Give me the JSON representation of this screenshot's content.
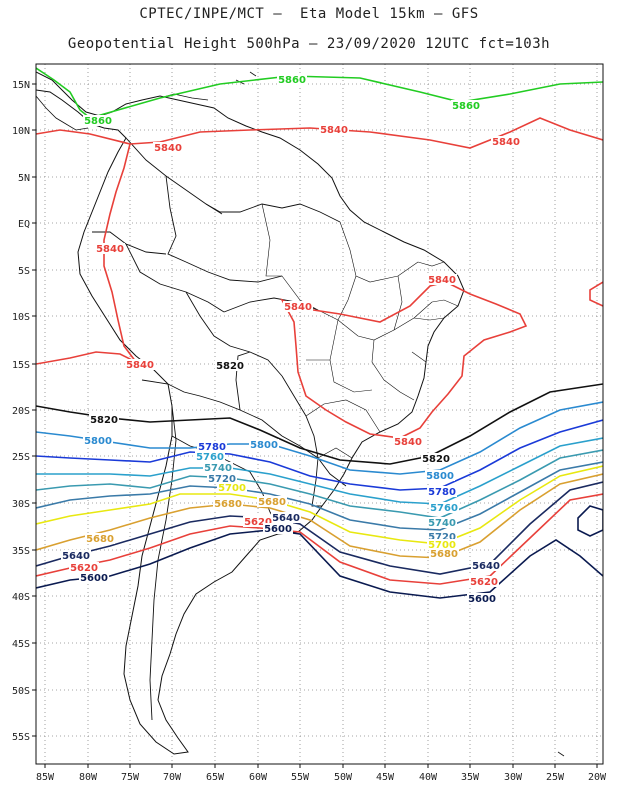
{
  "header": {
    "line1": "CPTEC/INPE/MCT –  Eta Model 15km – GFS",
    "line2": "Geopotential Height 500hPa – 23/09/2020 12UTC fct=103h"
  },
  "axes": {
    "lat_labels": [
      "15N",
      "10N",
      "5N",
      "EQ",
      "5S",
      "10S",
      "15S",
      "20S",
      "25S",
      "30S",
      "35S",
      "40S",
      "45S",
      "50S",
      "55S"
    ],
    "lon_labels": [
      "85W",
      "80W",
      "75W",
      "70W",
      "65W",
      "60W",
      "55W",
      "50W",
      "45W",
      "40W",
      "35W",
      "30W",
      "25W",
      "20W"
    ],
    "grid": "dotted"
  },
  "colors": {
    "5860": "#22cc22",
    "5840": "#e8403a",
    "5820": "#111111",
    "5800": "#2a8ad0",
    "5780": "#1a3ad8",
    "5760": "#2aa0cc",
    "5740": "#3a9ab0",
    "5720": "#3a7aa8",
    "5700": "#e8e810",
    "5680": "#d9a030",
    "5640": "#1a2a60",
    "5620": "#e8403a",
    "5600": "#0a1a50"
  },
  "contour_labels": [
    {
      "text": "5860"
    },
    {
      "text": "5860"
    },
    {
      "text": "5860"
    },
    {
      "text": "5840"
    },
    {
      "text": "5840"
    },
    {
      "text": "5840"
    },
    {
      "text": "5840"
    },
    {
      "text": "5840"
    },
    {
      "text": "5840"
    },
    {
      "text": "5840"
    },
    {
      "text": "5840"
    },
    {
      "text": "5820"
    },
    {
      "text": "5820"
    },
    {
      "text": "5820"
    },
    {
      "text": "5800"
    },
    {
      "text": "5800"
    },
    {
      "text": "5800"
    },
    {
      "text": "5780"
    },
    {
      "text": "5780"
    },
    {
      "text": "5760"
    },
    {
      "text": "5760"
    },
    {
      "text": "5740"
    },
    {
      "text": "5740"
    },
    {
      "text": "5720"
    },
    {
      "text": "5720"
    },
    {
      "text": "5700"
    },
    {
      "text": "5700"
    },
    {
      "text": "5680"
    },
    {
      "text": "5680"
    },
    {
      "text": "5680"
    },
    {
      "text": "5680"
    },
    {
      "text": "5640"
    },
    {
      "text": "5640"
    },
    {
      "text": "5640"
    },
    {
      "text": "5620"
    },
    {
      "text": "5620"
    },
    {
      "text": "5620"
    },
    {
      "text": "5600"
    },
    {
      "text": "5600"
    },
    {
      "text": "5600"
    }
  ]
}
